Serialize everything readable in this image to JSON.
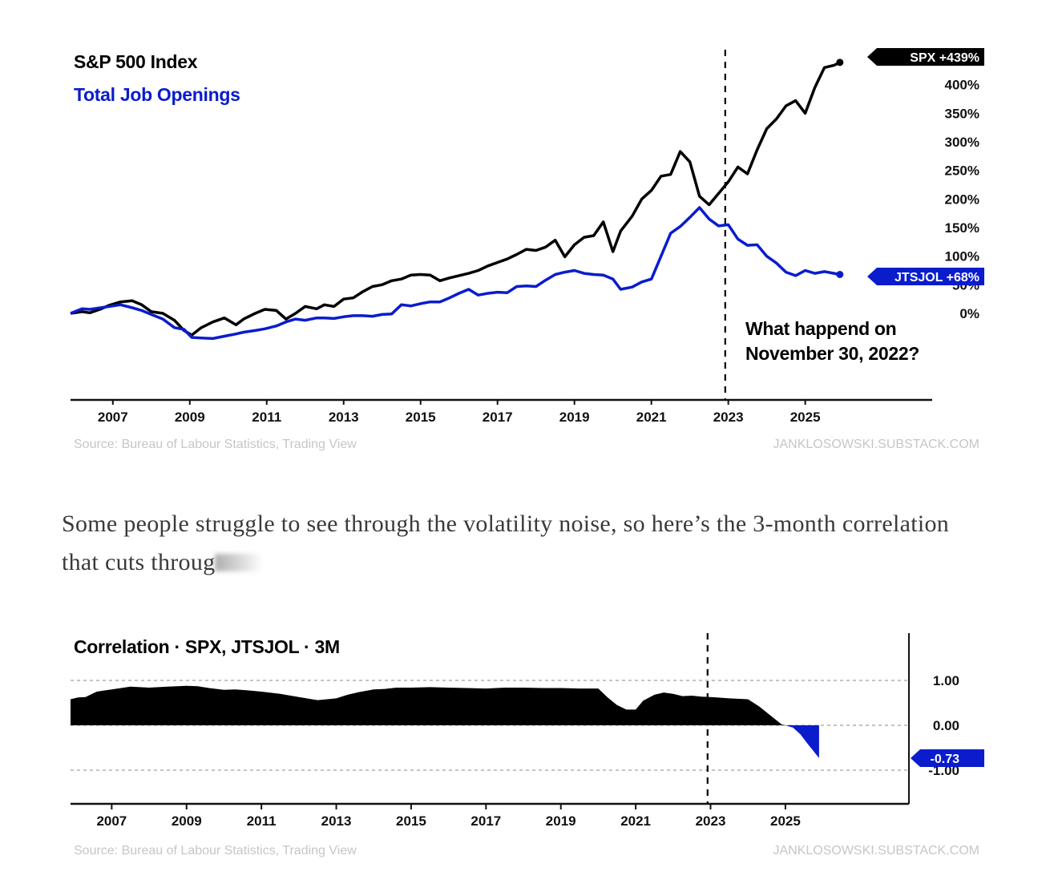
{
  "paragraph": {
    "text": "Some people struggle to see through the volatility noise, so here’s the 3-month correlation that cuts throug"
  },
  "chart_data": [
    {
      "type": "line",
      "x_ticks": [
        "2007",
        "2009",
        "2011",
        "2013",
        "2015",
        "2017",
        "2019",
        "2021",
        "2023",
        "2025"
      ],
      "y_ticks": [
        "0%",
        "50%",
        "100%",
        "150%",
        "200%",
        "250%",
        "300%",
        "350%",
        "400%"
      ],
      "xlim": [
        2005.9,
        2028.3
      ],
      "ylim": [
        -150,
        450
      ],
      "grid": false,
      "legend": "top-left",
      "series": [
        {
          "name": "S&P 500 Index",
          "color": "#000000",
          "label": "SPX +439%",
          "x": [
            2005.9,
            2006.2,
            2006.4,
            2006.7,
            2006.9,
            2007.2,
            2007.5,
            2007.75,
            2008.0,
            2008.3,
            2008.6,
            2008.85,
            2009.05,
            2009.3,
            2009.6,
            2009.9,
            2010.2,
            2010.4,
            2010.7,
            2010.95,
            2011.25,
            2011.5,
            2011.75,
            2012.0,
            2012.3,
            2012.5,
            2012.75,
            2013.0,
            2013.25,
            2013.5,
            2013.75,
            2014.0,
            2014.25,
            2014.5,
            2014.75,
            2015.0,
            2015.25,
            2015.5,
            2015.75,
            2016.0,
            2016.25,
            2016.5,
            2016.75,
            2017.0,
            2017.25,
            2017.5,
            2017.75,
            2018.0,
            2018.25,
            2018.5,
            2018.75,
            2019.0,
            2019.25,
            2019.5,
            2019.75,
            2020.0,
            2020.2,
            2020.5,
            2020.75,
            2021.0,
            2021.25,
            2021.5,
            2021.75,
            2022.0,
            2022.25,
            2022.5,
            2022.75,
            2023.0,
            2023.25,
            2023.5,
            2023.75,
            2024.0,
            2024.25,
            2024.5,
            2024.75,
            2025.0,
            2025.25,
            2025.5,
            2025.75,
            2025.9
          ],
          "y": [
            0,
            3,
            1,
            8,
            14,
            20,
            22,
            15,
            3,
            0,
            -12,
            -30,
            -38,
            -25,
            -15,
            -8,
            -20,
            -10,
            0,
            7,
            5,
            -10,
            0,
            12,
            8,
            15,
            12,
            25,
            27,
            38,
            47,
            50,
            57,
            60,
            67,
            68,
            67,
            57,
            62,
            66,
            70,
            75,
            83,
            89,
            95,
            103,
            112,
            110,
            116,
            128,
            99,
            120,
            133,
            136,
            160,
            108,
            144,
            170,
            200,
            215,
            240,
            243,
            283,
            265,
            205,
            190,
            210,
            230,
            256,
            244,
            286,
            323,
            340,
            363,
            372,
            350,
            395,
            430,
            434,
            439
          ]
        },
        {
          "name": "Total Job Openings",
          "color": "#0a1ccc",
          "label": "JTSJOL +68%",
          "x": [
            2005.9,
            2006.2,
            2006.4,
            2006.7,
            2006.9,
            2007.2,
            2007.5,
            2007.75,
            2008.0,
            2008.3,
            2008.6,
            2008.85,
            2009.05,
            2009.3,
            2009.6,
            2009.9,
            2010.2,
            2010.4,
            2010.7,
            2010.95,
            2011.25,
            2011.5,
            2011.75,
            2012.0,
            2012.3,
            2012.5,
            2012.75,
            2013.0,
            2013.25,
            2013.5,
            2013.75,
            2014.0,
            2014.25,
            2014.5,
            2014.75,
            2015.0,
            2015.25,
            2015.5,
            2015.75,
            2016.0,
            2016.25,
            2016.5,
            2016.75,
            2017.0,
            2017.25,
            2017.5,
            2017.75,
            2018.0,
            2018.25,
            2018.5,
            2018.75,
            2019.0,
            2019.25,
            2019.5,
            2019.75,
            2020.0,
            2020.2,
            2020.5,
            2020.75,
            2021.0,
            2021.25,
            2021.5,
            2021.75,
            2022.0,
            2022.25,
            2022.5,
            2022.75,
            2023.0,
            2023.25,
            2023.5,
            2023.75,
            2024.0,
            2024.25,
            2024.5,
            2024.75,
            2025.0,
            2025.25,
            2025.5,
            2025.75,
            2025.9
          ],
          "y": [
            0,
            8,
            7,
            10,
            12,
            15,
            10,
            5,
            -2,
            -10,
            -25,
            -28,
            -42,
            -43,
            -44,
            -40,
            -36,
            -33,
            -30,
            -27,
            -22,
            -15,
            -10,
            -12,
            -8,
            -8,
            -9,
            -6,
            -4,
            -4,
            -5,
            -2,
            -1,
            15,
            13,
            17,
            20,
            20,
            27,
            35,
            42,
            32,
            35,
            37,
            36,
            47,
            48,
            47,
            58,
            68,
            72,
            75,
            70,
            68,
            67,
            60,
            42,
            46,
            55,
            60,
            100,
            140,
            152,
            168,
            185,
            165,
            153,
            155,
            130,
            119,
            120,
            100,
            88,
            72,
            66,
            75,
            70,
            73,
            70,
            68
          ]
        }
      ],
      "annotation": "What happend on\nNovember 30, 2022?",
      "marker_x": 2022.92,
      "title_lines": [
        "S&P 500 Index",
        "Total Job Openings"
      ],
      "source": "Source:  Bureau of Labour Statistics, Trading View",
      "credit": "JANKLOSOWSKI.SUBSTACK.COM"
    },
    {
      "type": "area",
      "title": "Correlation · SPX, JTSJOL · 3M",
      "x_ticks": [
        "2007",
        "2009",
        "2011",
        "2013",
        "2015",
        "2017",
        "2019",
        "2021",
        "2023",
        "2025"
      ],
      "y_ticks": [
        "1.00",
        "0.00",
        "-1.00"
      ],
      "y_tick_values": [
        1,
        0,
        -1
      ],
      "xlim": [
        2005.9,
        2028.3
      ],
      "ylim": [
        -1.75,
        1.05
      ],
      "grid": true,
      "legend": "none",
      "series": [
        {
          "name": "Correlation",
          "color_positive": "#000000",
          "color_negative": "#0a1ccc",
          "label": "-0.73",
          "x": [
            2005.9,
            2006.1,
            2006.3,
            2006.6,
            2007.0,
            2007.5,
            2008.0,
            2008.5,
            2009.0,
            2009.3,
            2009.6,
            2010.0,
            2010.3,
            2010.6,
            2011.0,
            2011.5,
            2012.0,
            2012.5,
            2013.0,
            2013.3,
            2013.6,
            2014.0,
            2014.3,
            2014.6,
            2015.0,
            2015.5,
            2016.0,
            2016.5,
            2017.0,
            2017.5,
            2018.0,
            2018.5,
            2019.0,
            2019.5,
            2020.0,
            2020.25,
            2020.5,
            2020.75,
            2021.0,
            2021.2,
            2021.5,
            2021.75,
            2022.0,
            2022.25,
            2022.5,
            2022.75,
            2023.0,
            2023.5,
            2024.0,
            2024.3,
            2024.6,
            2024.9,
            2025.2,
            2025.4,
            2025.6,
            2025.9
          ],
          "y": [
            0.58,
            0.62,
            0.63,
            0.75,
            0.8,
            0.86,
            0.84,
            0.86,
            0.88,
            0.87,
            0.83,
            0.79,
            0.8,
            0.78,
            0.75,
            0.7,
            0.63,
            0.56,
            0.6,
            0.68,
            0.74,
            0.8,
            0.81,
            0.84,
            0.84,
            0.85,
            0.84,
            0.83,
            0.82,
            0.84,
            0.84,
            0.83,
            0.83,
            0.82,
            0.82,
            0.62,
            0.45,
            0.35,
            0.35,
            0.55,
            0.68,
            0.73,
            0.7,
            0.65,
            0.66,
            0.64,
            0.63,
            0.6,
            0.58,
            0.42,
            0.22,
            0.02,
            -0.05,
            -0.2,
            -0.42,
            -0.73
          ]
        }
      ],
      "marker_x": 2022.92,
      "source": "Source:  Bureau of Labour Statistics, Trading View",
      "credit": "JANKLOSOWSKI.SUBSTACK.COM"
    }
  ]
}
